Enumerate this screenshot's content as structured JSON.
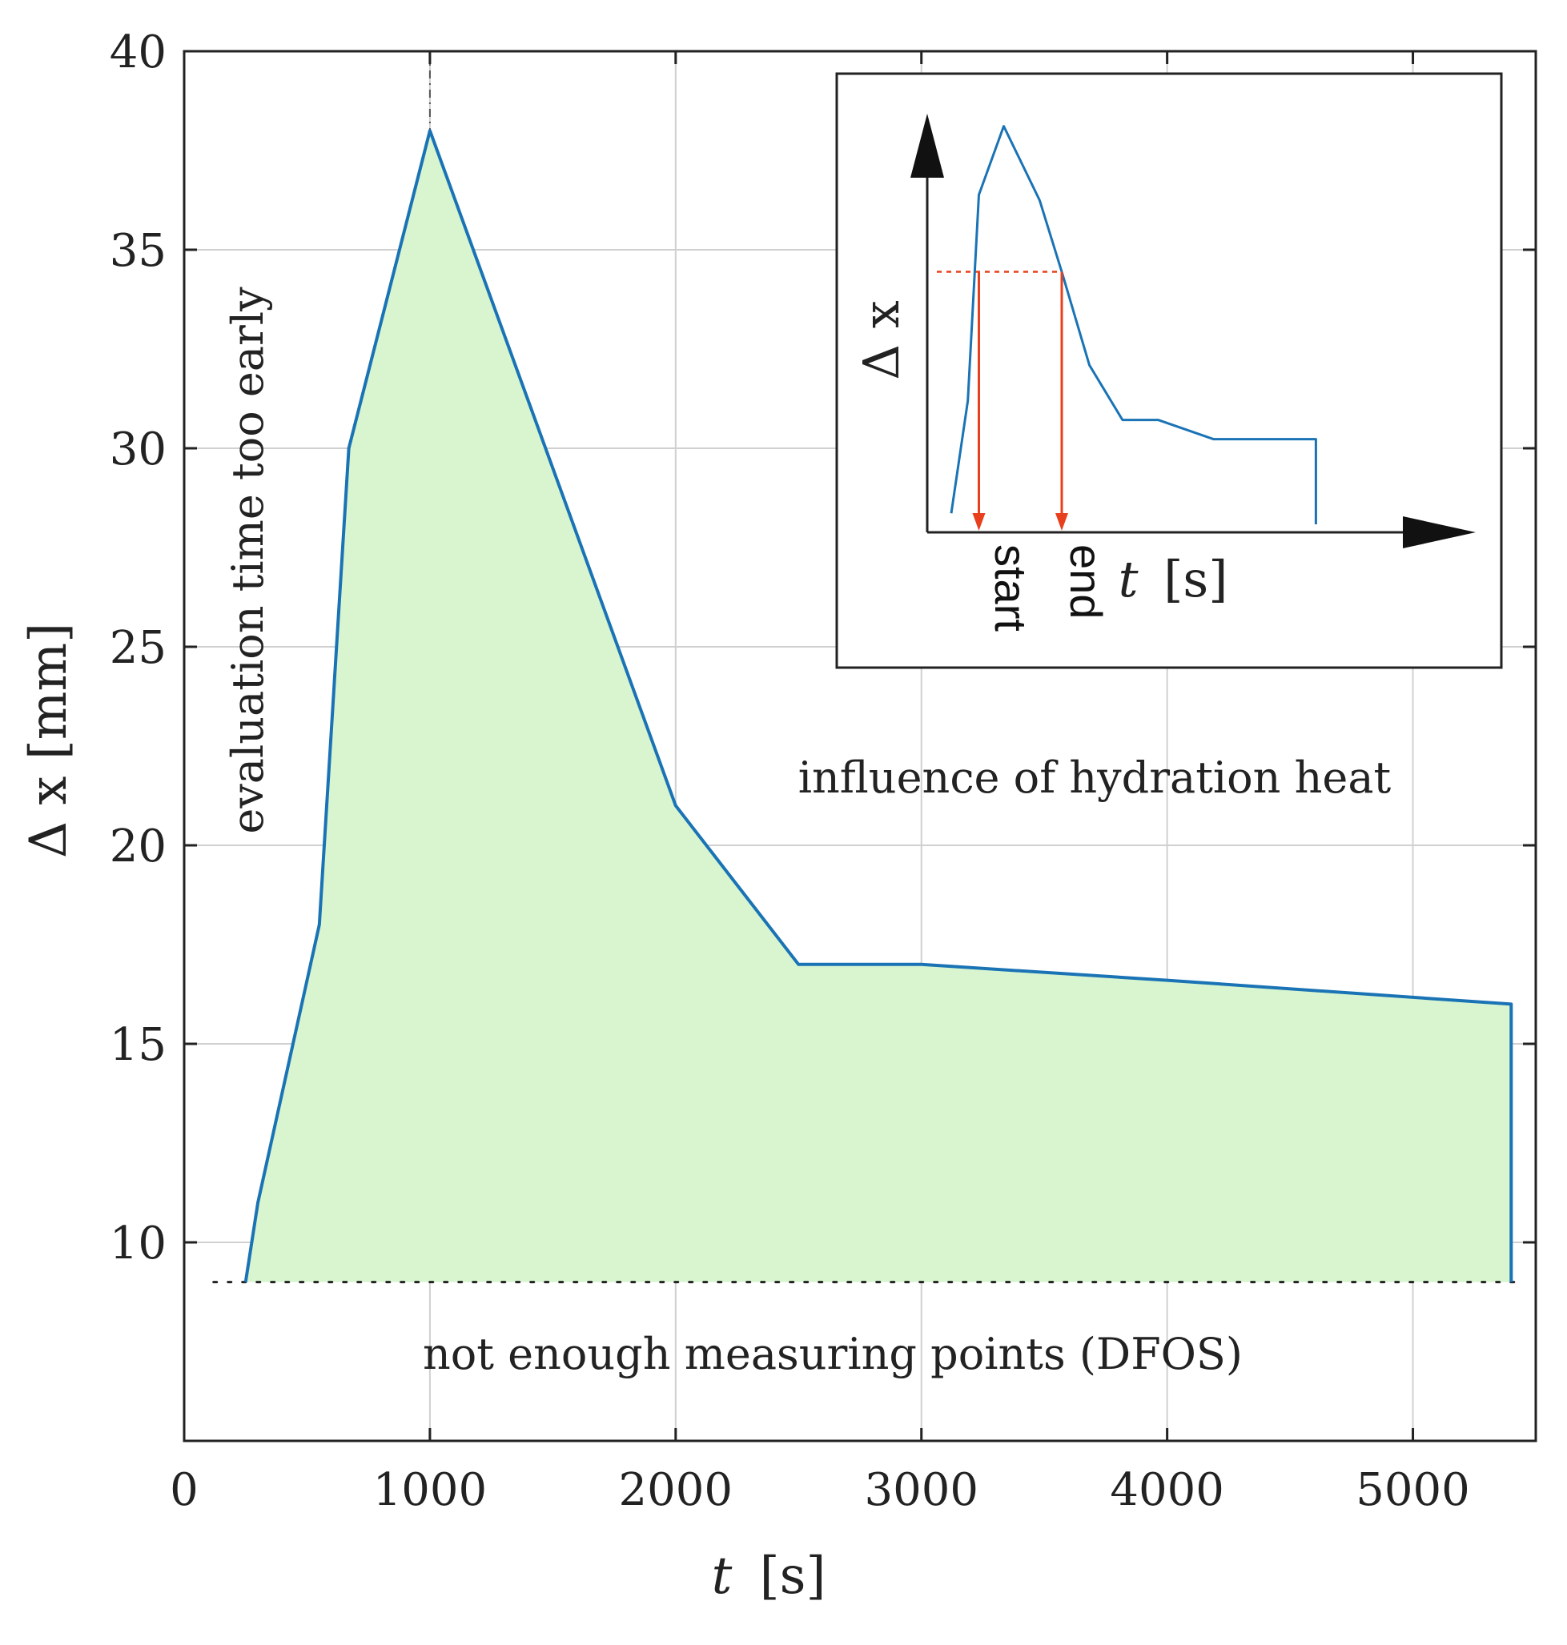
{
  "chart_data": {
    "type": "area",
    "title": "",
    "xlabel_italic": "t",
    "xlabel_unit": "[s]",
    "ylabel": "Δ x [mm]",
    "xlim": [
      0,
      5500
    ],
    "ylim": [
      5,
      40
    ],
    "xticks": [
      0,
      1000,
      2000,
      3000,
      4000,
      5000
    ],
    "yticks": [
      10,
      15,
      20,
      25,
      30,
      35,
      40
    ],
    "grid": true,
    "series": [
      {
        "name": "Δ x",
        "color": "#1a73b5",
        "fill": "#d8f5d0",
        "x": [
          250,
          300,
          550,
          670,
          1000,
          2000,
          2500,
          3000,
          4000,
          5400,
          5400
        ],
        "y": [
          9,
          11,
          18,
          30,
          38,
          21,
          17,
          17,
          16.6,
          16,
          9
        ]
      }
    ],
    "threshold_line": {
      "y": 9,
      "style": "dotted",
      "color": "#222222"
    },
    "vertical_marker": {
      "x": 1000,
      "style": "dash-dot",
      "color": "#555555"
    },
    "annotations": {
      "early": "evaluation time too early",
      "hydration": "influence of hydration heat",
      "dfos": "not enough measuring points (DFOS)"
    },
    "inset": {
      "ylabel": "Δ x",
      "xlabel_italic": "t",
      "xlabel_unit": "[s]",
      "start_label": "start",
      "end_label": "end",
      "arrow_color": "#e8401c",
      "line_color": "#1a73b5",
      "curve_x": [
        0.0,
        0.06,
        0.1,
        0.19,
        0.32,
        0.4,
        0.5,
        0.62,
        0.75,
        0.95,
        1.32,
        1.32
      ],
      "curve_y": [
        0.04,
        0.45,
        1.2,
        1.45,
        1.18,
        0.92,
        0.58,
        0.38,
        0.38,
        0.31,
        0.31,
        0.0
      ],
      "threshold_y": 0.92,
      "start_x": 0.1,
      "end_x": 0.4
    }
  }
}
